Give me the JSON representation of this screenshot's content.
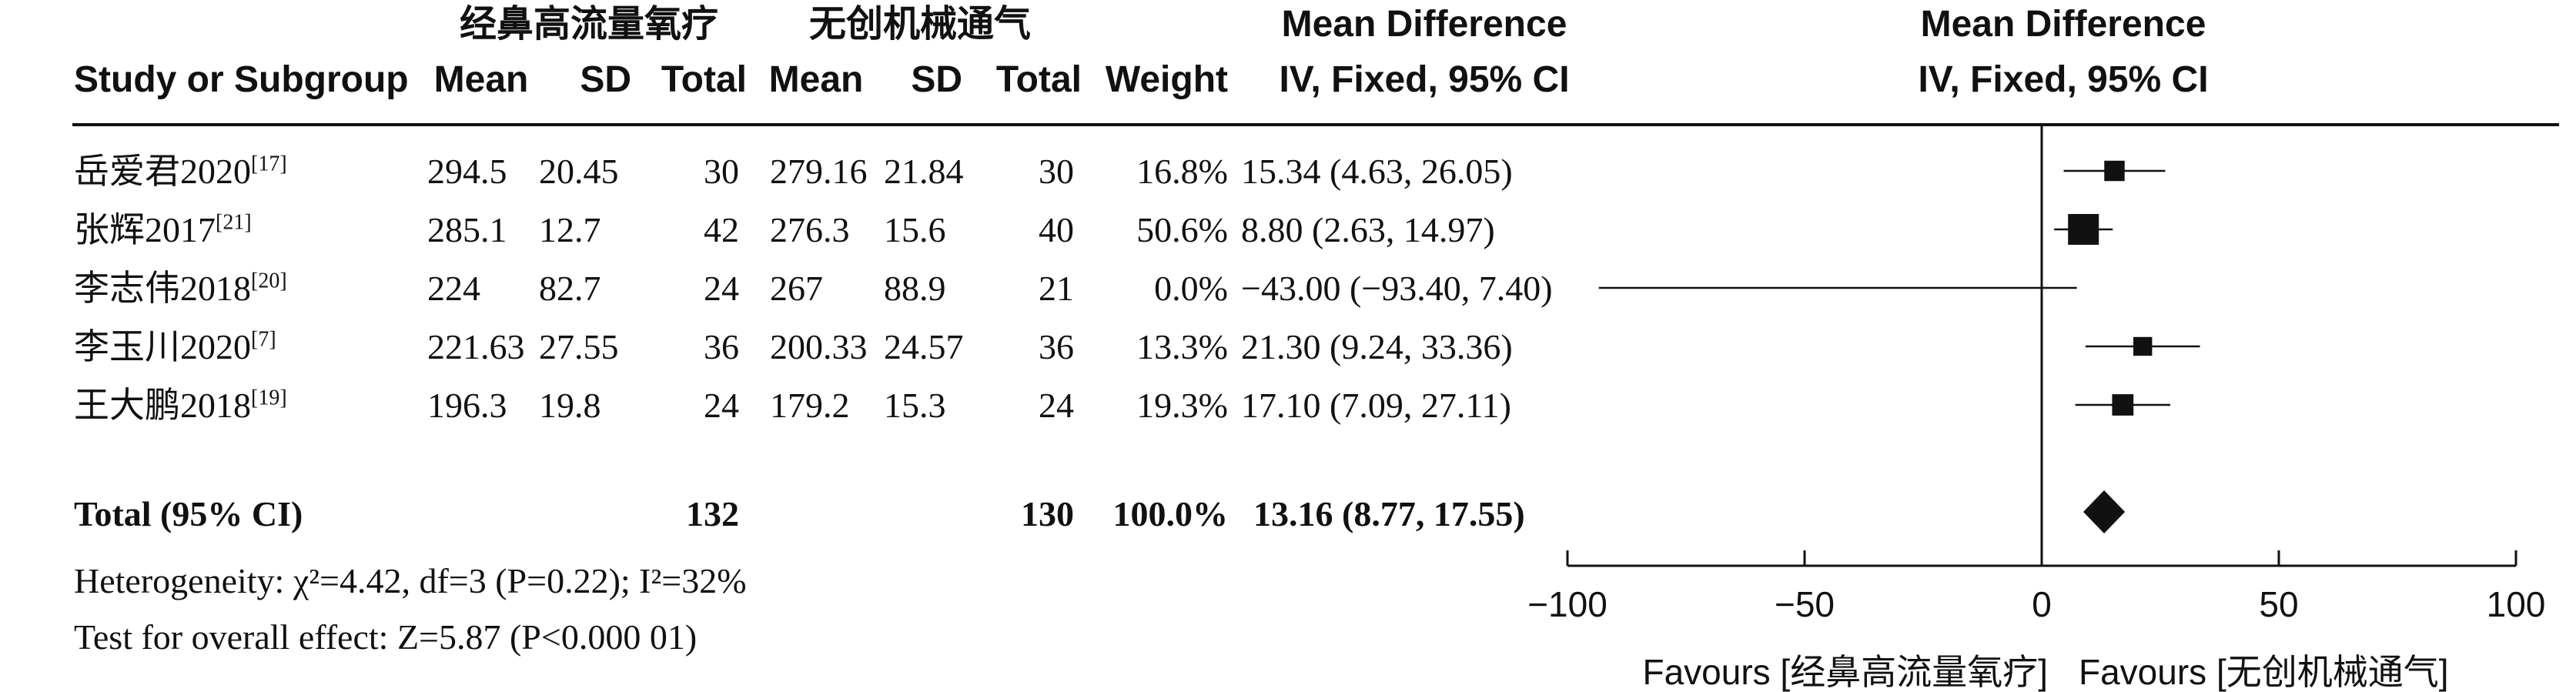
{
  "header": {
    "group1_label": "经鼻高流量氧疗",
    "group2_label": "无创机械通气",
    "col_study": "Study or Subgroup",
    "col_mean": "Mean",
    "col_sd": "SD",
    "col_total": "Total",
    "col_weight": "Weight",
    "col_md_title": "Mean Difference",
    "col_md_method": "IV, Fixed, 95% CI",
    "plot_title": "Mean Difference",
    "plot_method": "IV, Fixed, 95% CI"
  },
  "studies": [
    {
      "name": "岳爱君2020",
      "ref": "[17]",
      "m1": "294.5",
      "sd1": "20.45",
      "n1": "30",
      "m2": "279.16",
      "sd2": "21.84",
      "n2": "30",
      "weight": "16.8%",
      "ci": "15.34 (4.63, 26.05)"
    },
    {
      "name": "张辉2017",
      "ref": "[21]",
      "m1": "285.1",
      "sd1": "12.7",
      "n1": "42",
      "m2": "276.3",
      "sd2": "15.6",
      "n2": "40",
      "weight": "50.6%",
      "ci": "8.80 (2.63, 14.97)"
    },
    {
      "name": "李志伟2018",
      "ref": "[20]",
      "m1": "224",
      "sd1": "82.7",
      "n1": "24",
      "m2": "267",
      "sd2": "88.9",
      "n2": "21",
      "weight": "0.0%",
      "ci": "−43.00 (−93.40, 7.40)"
    },
    {
      "name": "李玉川2020",
      "ref": "[7]",
      "m1": "221.63",
      "sd1": "27.55",
      "n1": "36",
      "m2": "200.33",
      "sd2": "24.57",
      "n2": "36",
      "weight": "13.3%",
      "ci": "21.30 (9.24, 33.36)"
    },
    {
      "name": "王大鹏2018",
      "ref": "[19]",
      "m1": "196.3",
      "sd1": "19.8",
      "n1": "24",
      "m2": "179.2",
      "sd2": "15.3",
      "n2": "24",
      "weight": "19.3%",
      "ci": "17.10 (7.09, 27.11)"
    }
  ],
  "total": {
    "label": "Total (95% CI)",
    "n1": "132",
    "n2": "130",
    "weight": "100.0%",
    "ci": "13.16 (8.77, 17.55)"
  },
  "footer": {
    "heterogeneity": "Heterogeneity: χ²=4.42, df=3 (P=0.22); I²=32%",
    "overall_effect": "Test for overall effect: Z=5.87 (P<0.000 01)"
  },
  "axis": {
    "favours_left": "Favours [经鼻高流量氧疗]",
    "favours_right": "Favours [无创机械通气]"
  },
  "colors": {
    "ink": "#111111"
  },
  "chart_data": {
    "type": "forest",
    "title": "",
    "xlabel": "",
    "xlim": [
      -100,
      100
    ],
    "ticks": [
      -100,
      -50,
      0,
      50,
      100
    ],
    "tick_labels": [
      "−100",
      "−50",
      "0",
      "50",
      "100"
    ],
    "points": [
      {
        "study": "岳爱君2020",
        "md": 15.34,
        "lo": 4.63,
        "hi": 26.05,
        "weight": 16.8
      },
      {
        "study": "张辉2017",
        "md": 8.8,
        "lo": 2.63,
        "hi": 14.97,
        "weight": 50.6
      },
      {
        "study": "李志伟2018",
        "md": -43.0,
        "lo": -93.4,
        "hi": 7.4,
        "weight": 0.0
      },
      {
        "study": "李玉川2020",
        "md": 21.3,
        "lo": 9.24,
        "hi": 33.36,
        "weight": 13.3
      },
      {
        "study": "王大鹏2018",
        "md": 17.1,
        "lo": 7.09,
        "hi": 27.11,
        "weight": 19.3
      }
    ],
    "summary": {
      "md": 13.16,
      "lo": 8.77,
      "hi": 17.55
    }
  }
}
